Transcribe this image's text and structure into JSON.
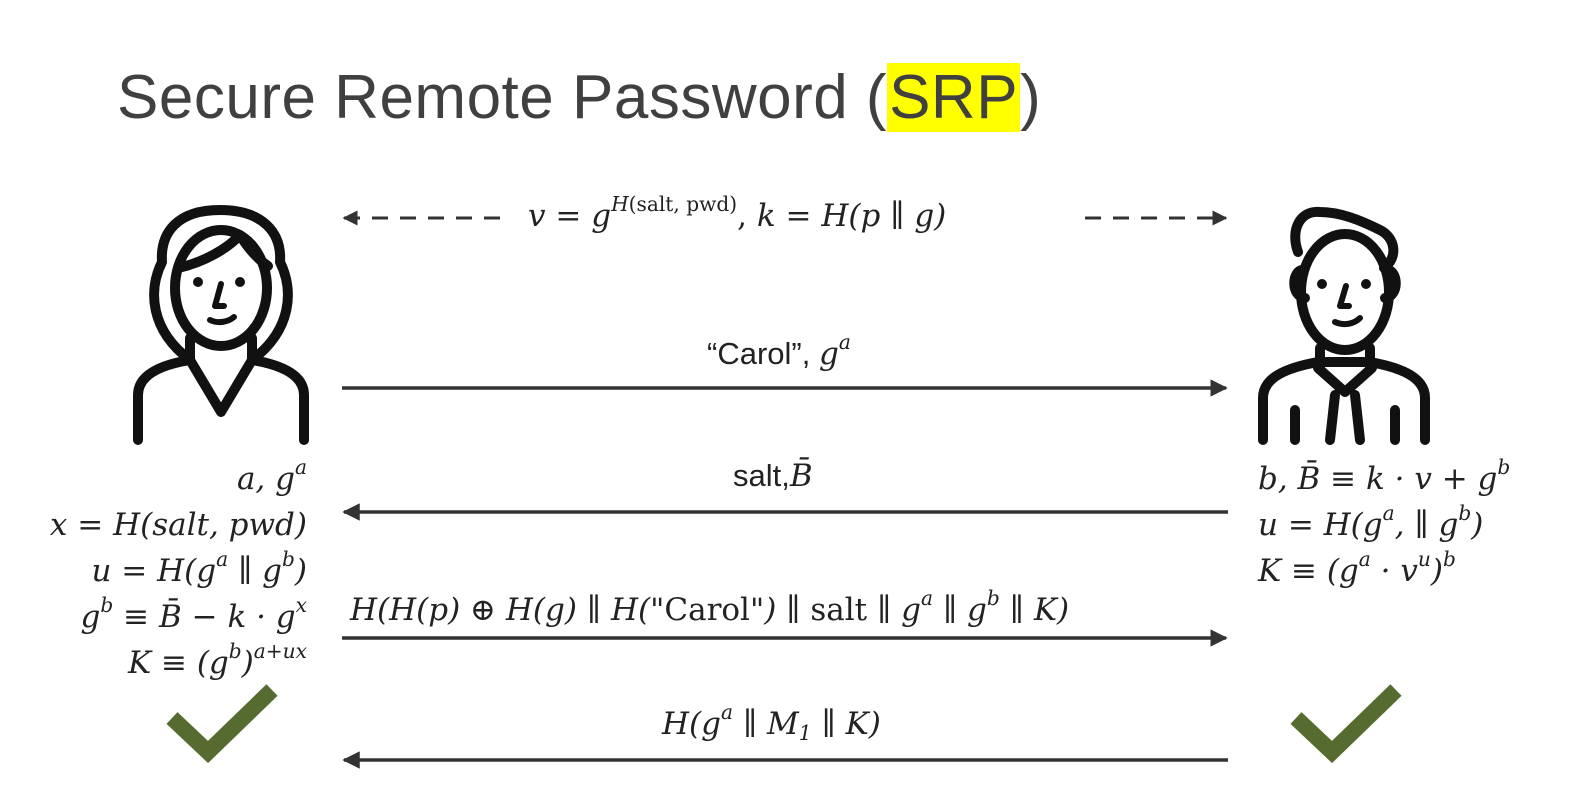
{
  "title": {
    "main": "Secure Remote Password (",
    "highlight": "SRP",
    "close": ")"
  },
  "colors": {
    "highlight": "#ffff00",
    "check": "#556b2f",
    "line": "#333333",
    "title": "#404040"
  },
  "actors": {
    "left": {
      "icon": "woman-user-icon"
    },
    "right": {
      "icon": "man-user-icon"
    }
  },
  "messages": {
    "setup": {
      "v": "v",
      "eq": "=",
      "g": "g",
      "h_sup": "H",
      "sup_args": "(salt, pwd)",
      "sep": ",",
      "k": "k",
      "eq2": "=",
      "rhs": "H(p ∥ g)"
    },
    "m1": {
      "name": "“Carol”, ",
      "g": "g",
      "sup": "a"
    },
    "m2": {
      "salt": "salt,",
      "b": "B̄"
    },
    "m3": {
      "lhs": "H(H(p) ⊕ H(g) ∥ H(",
      "carol": "\"Carol\"",
      "mid": ") ∥ ",
      "salt": "salt",
      "tail1": " ∥ g",
      "a": "a",
      "tail2": " ∥ g",
      "b": "b",
      "tail3": " ∥ K)"
    },
    "m4": {
      "pre": "H(g",
      "a": "a",
      "mid": " ∥ M",
      "sub": "1",
      "post": " ∥ K)"
    }
  },
  "left_equations": {
    "l1": {
      "pre": "a, g",
      "sup": "a"
    },
    "l2": {
      "pre": "x = H(salt, pwd)"
    },
    "l3": {
      "pre": "u = H(g",
      "sup1": "a",
      "mid": " ∥ g",
      "sup2": "b",
      "post": ")"
    },
    "l4": {
      "pre": "g",
      "sup1": "b",
      "mid": " ≡ B̄ − k · g",
      "sup2": "x"
    },
    "l5": {
      "pre": "K ≡ (g",
      "sup1": "b",
      "mid": ")",
      "sup2": "a+ux"
    }
  },
  "right_equations": {
    "r1": {
      "pre": "b, B̄ ≡ k · v + g",
      "sup": "b"
    },
    "r2": {
      "pre": "u = H(g",
      "sup1": "a",
      "mid": ", ∥ g",
      "sup2": "b",
      "post": ")"
    },
    "r3": {
      "pre": "K ≡ (g",
      "sup1": "a",
      "mid": " · v",
      "sup2": "u",
      "post": ")",
      "sup3": "b"
    }
  }
}
